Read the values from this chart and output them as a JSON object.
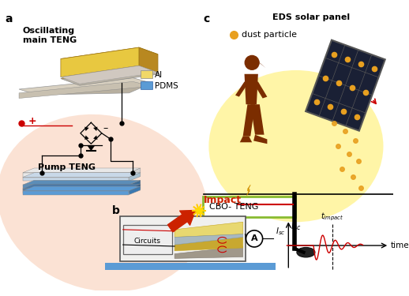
{
  "title_a": "a",
  "title_b": "b",
  "title_c": "c",
  "label_oscillating": "Oscillating\nmain TENG",
  "label_pump": "Pump TENG",
  "label_al": "Al",
  "label_pdms": "PDMS",
  "label_circuits": "Circuits",
  "label_impact": "Impact",
  "label_cbo": "CBO- TENG",
  "label_eds": "EDS solar panel",
  "label_dust": "dust particle",
  "label_isc": "I",
  "label_sc": "sc",
  "label_timpact": "t",
  "label_impact_sub": "impact",
  "label_time": "time",
  "color_al": "#E8C840",
  "color_al_dark": "#C8A820",
  "color_pdms": "#5B9BD5",
  "color_teng_body": "#D4A830",
  "color_teng_top": "#F0D868",
  "color_teng_side": "#B88820",
  "color_teng_gray": "#C8C0B0",
  "color_teng_gray2": "#A8A098",
  "color_person": "#7B2D00",
  "color_red": "#CC0000",
  "color_orange_dust": "#E8A020",
  "color_panel_dark": "#1a2035",
  "color_panel_frame": "#555555",
  "color_arrow_red": "#CC2200",
  "color_bg": "#FFFFFF",
  "color_glow_yellow": "#FFEE60",
  "color_glow_pink": "#F8C0A0",
  "color_circuit_box": "#444444",
  "color_green_box": "#88BB30",
  "color_lamp": "#222222",
  "color_device_yellow": "#C8A830",
  "color_device_gray": "#787060",
  "color_device_light": "#E8D870"
}
